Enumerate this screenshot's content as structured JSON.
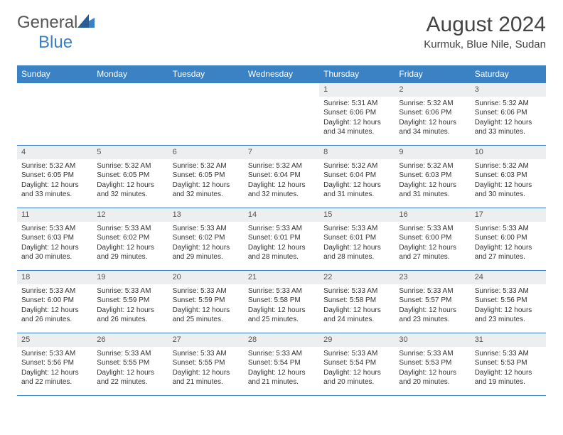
{
  "logo": {
    "general": "General",
    "blue": "Blue"
  },
  "title": "August 2024",
  "location": "Kurmuk, Blue Nile, Sudan",
  "colors": {
    "header_bg": "#3b82c4",
    "header_text": "#ffffff",
    "border": "#3b7fc4",
    "daynum_bg": "#eceeef",
    "logo_blue": "#3b7fc4",
    "logo_gray": "#555555"
  },
  "typography": {
    "title_fontsize": 30,
    "location_fontsize": 15,
    "dayheader_fontsize": 12,
    "daynum_fontsize": 11,
    "body_fontsize": 10
  },
  "day_headers": [
    "Sunday",
    "Monday",
    "Tuesday",
    "Wednesday",
    "Thursday",
    "Friday",
    "Saturday"
  ],
  "weeks": [
    [
      {
        "n": "",
        "sr": "",
        "ss": "",
        "dl": ""
      },
      {
        "n": "",
        "sr": "",
        "ss": "",
        "dl": ""
      },
      {
        "n": "",
        "sr": "",
        "ss": "",
        "dl": ""
      },
      {
        "n": "",
        "sr": "",
        "ss": "",
        "dl": ""
      },
      {
        "n": "1",
        "sr": "Sunrise: 5:31 AM",
        "ss": "Sunset: 6:06 PM",
        "dl": "Daylight: 12 hours and 34 minutes."
      },
      {
        "n": "2",
        "sr": "Sunrise: 5:32 AM",
        "ss": "Sunset: 6:06 PM",
        "dl": "Daylight: 12 hours and 34 minutes."
      },
      {
        "n": "3",
        "sr": "Sunrise: 5:32 AM",
        "ss": "Sunset: 6:06 PM",
        "dl": "Daylight: 12 hours and 33 minutes."
      }
    ],
    [
      {
        "n": "4",
        "sr": "Sunrise: 5:32 AM",
        "ss": "Sunset: 6:05 PM",
        "dl": "Daylight: 12 hours and 33 minutes."
      },
      {
        "n": "5",
        "sr": "Sunrise: 5:32 AM",
        "ss": "Sunset: 6:05 PM",
        "dl": "Daylight: 12 hours and 32 minutes."
      },
      {
        "n": "6",
        "sr": "Sunrise: 5:32 AM",
        "ss": "Sunset: 6:05 PM",
        "dl": "Daylight: 12 hours and 32 minutes."
      },
      {
        "n": "7",
        "sr": "Sunrise: 5:32 AM",
        "ss": "Sunset: 6:04 PM",
        "dl": "Daylight: 12 hours and 32 minutes."
      },
      {
        "n": "8",
        "sr": "Sunrise: 5:32 AM",
        "ss": "Sunset: 6:04 PM",
        "dl": "Daylight: 12 hours and 31 minutes."
      },
      {
        "n": "9",
        "sr": "Sunrise: 5:32 AM",
        "ss": "Sunset: 6:03 PM",
        "dl": "Daylight: 12 hours and 31 minutes."
      },
      {
        "n": "10",
        "sr": "Sunrise: 5:32 AM",
        "ss": "Sunset: 6:03 PM",
        "dl": "Daylight: 12 hours and 30 minutes."
      }
    ],
    [
      {
        "n": "11",
        "sr": "Sunrise: 5:33 AM",
        "ss": "Sunset: 6:03 PM",
        "dl": "Daylight: 12 hours and 30 minutes."
      },
      {
        "n": "12",
        "sr": "Sunrise: 5:33 AM",
        "ss": "Sunset: 6:02 PM",
        "dl": "Daylight: 12 hours and 29 minutes."
      },
      {
        "n": "13",
        "sr": "Sunrise: 5:33 AM",
        "ss": "Sunset: 6:02 PM",
        "dl": "Daylight: 12 hours and 29 minutes."
      },
      {
        "n": "14",
        "sr": "Sunrise: 5:33 AM",
        "ss": "Sunset: 6:01 PM",
        "dl": "Daylight: 12 hours and 28 minutes."
      },
      {
        "n": "15",
        "sr": "Sunrise: 5:33 AM",
        "ss": "Sunset: 6:01 PM",
        "dl": "Daylight: 12 hours and 28 minutes."
      },
      {
        "n": "16",
        "sr": "Sunrise: 5:33 AM",
        "ss": "Sunset: 6:00 PM",
        "dl": "Daylight: 12 hours and 27 minutes."
      },
      {
        "n": "17",
        "sr": "Sunrise: 5:33 AM",
        "ss": "Sunset: 6:00 PM",
        "dl": "Daylight: 12 hours and 27 minutes."
      }
    ],
    [
      {
        "n": "18",
        "sr": "Sunrise: 5:33 AM",
        "ss": "Sunset: 6:00 PM",
        "dl": "Daylight: 12 hours and 26 minutes."
      },
      {
        "n": "19",
        "sr": "Sunrise: 5:33 AM",
        "ss": "Sunset: 5:59 PM",
        "dl": "Daylight: 12 hours and 26 minutes."
      },
      {
        "n": "20",
        "sr": "Sunrise: 5:33 AM",
        "ss": "Sunset: 5:59 PM",
        "dl": "Daylight: 12 hours and 25 minutes."
      },
      {
        "n": "21",
        "sr": "Sunrise: 5:33 AM",
        "ss": "Sunset: 5:58 PM",
        "dl": "Daylight: 12 hours and 25 minutes."
      },
      {
        "n": "22",
        "sr": "Sunrise: 5:33 AM",
        "ss": "Sunset: 5:58 PM",
        "dl": "Daylight: 12 hours and 24 minutes."
      },
      {
        "n": "23",
        "sr": "Sunrise: 5:33 AM",
        "ss": "Sunset: 5:57 PM",
        "dl": "Daylight: 12 hours and 23 minutes."
      },
      {
        "n": "24",
        "sr": "Sunrise: 5:33 AM",
        "ss": "Sunset: 5:56 PM",
        "dl": "Daylight: 12 hours and 23 minutes."
      }
    ],
    [
      {
        "n": "25",
        "sr": "Sunrise: 5:33 AM",
        "ss": "Sunset: 5:56 PM",
        "dl": "Daylight: 12 hours and 22 minutes."
      },
      {
        "n": "26",
        "sr": "Sunrise: 5:33 AM",
        "ss": "Sunset: 5:55 PM",
        "dl": "Daylight: 12 hours and 22 minutes."
      },
      {
        "n": "27",
        "sr": "Sunrise: 5:33 AM",
        "ss": "Sunset: 5:55 PM",
        "dl": "Daylight: 12 hours and 21 minutes."
      },
      {
        "n": "28",
        "sr": "Sunrise: 5:33 AM",
        "ss": "Sunset: 5:54 PM",
        "dl": "Daylight: 12 hours and 21 minutes."
      },
      {
        "n": "29",
        "sr": "Sunrise: 5:33 AM",
        "ss": "Sunset: 5:54 PM",
        "dl": "Daylight: 12 hours and 20 minutes."
      },
      {
        "n": "30",
        "sr": "Sunrise: 5:33 AM",
        "ss": "Sunset: 5:53 PM",
        "dl": "Daylight: 12 hours and 20 minutes."
      },
      {
        "n": "31",
        "sr": "Sunrise: 5:33 AM",
        "ss": "Sunset: 5:53 PM",
        "dl": "Daylight: 12 hours and 19 minutes."
      }
    ]
  ]
}
